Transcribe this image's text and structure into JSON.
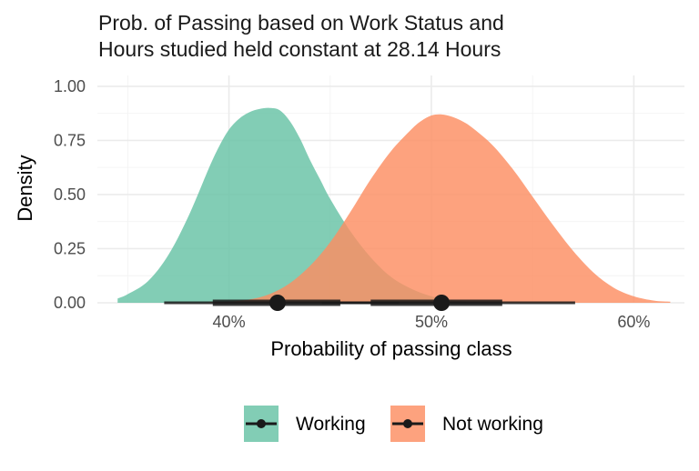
{
  "chart_data": {
    "type": "area",
    "title": "Prob. of Passing based on Work Status and\nHours studied held constant at 28.14 Hours",
    "xlabel": "Probability of passing class",
    "ylabel": "Density",
    "xlim": [
      0.335,
      0.625
    ],
    "ylim": [
      0,
      1.05
    ],
    "x_ticks": [
      0.4,
      0.5,
      0.6
    ],
    "x_tick_labels": [
      "40%",
      "50%",
      "60%"
    ],
    "y_ticks": [
      0.0,
      0.25,
      0.5,
      0.75,
      1.0
    ],
    "y_tick_labels": [
      "0.00",
      "0.25",
      "0.50",
      "0.75",
      "1.00"
    ],
    "grid": true,
    "legend_position": "bottom",
    "series": [
      {
        "name": "Working",
        "color": "#66c2a5",
        "density": {
          "x": [
            0.345,
            0.35,
            0.36,
            0.37,
            0.38,
            0.39,
            0.395,
            0.4,
            0.405,
            0.41,
            0.415,
            0.42,
            0.425,
            0.43,
            0.435,
            0.44,
            0.445,
            0.45,
            0.46,
            0.47,
            0.48,
            0.49,
            0.5,
            0.51,
            0.517
          ],
          "y": [
            0.02,
            0.04,
            0.1,
            0.22,
            0.4,
            0.62,
            0.72,
            0.8,
            0.85,
            0.88,
            0.895,
            0.9,
            0.89,
            0.84,
            0.76,
            0.66,
            0.57,
            0.48,
            0.33,
            0.21,
            0.12,
            0.065,
            0.03,
            0.012,
            0.005
          ]
        },
        "point_estimate": 0.424,
        "interval_66": [
          0.392,
          0.455
        ],
        "interval_95": [
          0.368,
          0.484
        ]
      },
      {
        "name": "Not working",
        "color": "#fc8d62",
        "density": {
          "x": [
            0.39,
            0.4,
            0.41,
            0.42,
            0.43,
            0.44,
            0.45,
            0.46,
            0.47,
            0.48,
            0.49,
            0.495,
            0.5,
            0.505,
            0.51,
            0.515,
            0.52,
            0.53,
            0.54,
            0.55,
            0.56,
            0.57,
            0.58,
            0.59,
            0.6,
            0.61,
            0.618
          ],
          "y": [
            0.002,
            0.005,
            0.015,
            0.04,
            0.09,
            0.17,
            0.28,
            0.42,
            0.57,
            0.7,
            0.8,
            0.84,
            0.865,
            0.87,
            0.86,
            0.84,
            0.81,
            0.73,
            0.62,
            0.49,
            0.36,
            0.24,
            0.14,
            0.07,
            0.03,
            0.01,
            0.005
          ]
        },
        "point_estimate": 0.505,
        "interval_66": [
          0.47,
          0.535
        ],
        "interval_95": [
          0.446,
          0.571
        ]
      }
    ]
  }
}
